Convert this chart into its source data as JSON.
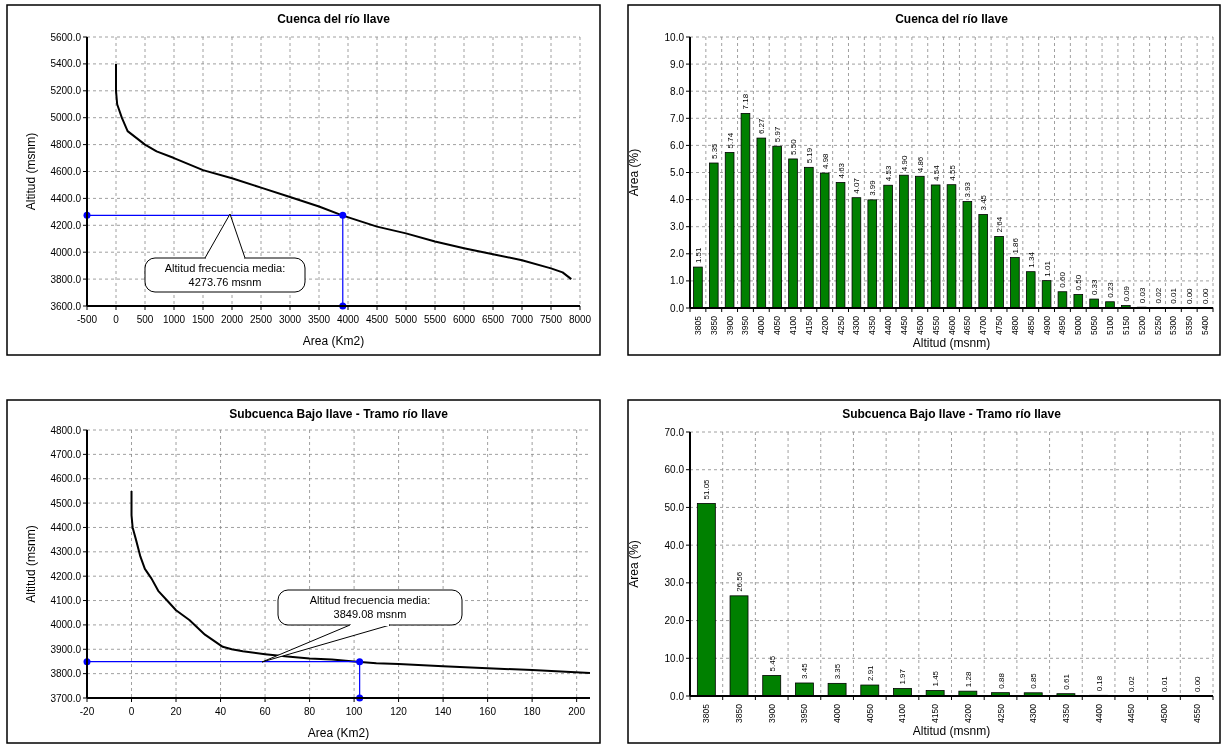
{
  "chart_data": [
    {
      "type": "line",
      "title": "Cuenca del río Ilave",
      "xlabel": "Area (Km2)",
      "ylabel": "Altitud (msnm)",
      "grid": true,
      "xlim": [
        -500,
        8000
      ],
      "xticks": [
        -500,
        0,
        500,
        1000,
        1500,
        2000,
        2500,
        3000,
        3500,
        4000,
        4500,
        5000,
        5500,
        6000,
        6500,
        7000,
        7500,
        8000
      ],
      "ylim": [
        3600,
        5600
      ],
      "yticks": [
        {
          "value": 3600,
          "label": "3600.0"
        },
        {
          "value": 3800,
          "label": "3800.0"
        },
        {
          "value": 4000,
          "label": "4000.0"
        },
        {
          "value": 4200,
          "label": "4200.0"
        },
        {
          "value": 4400,
          "label": "4400.0"
        },
        {
          "value": 4600,
          "label": "4600.0"
        },
        {
          "value": 4800,
          "label": "4800.0"
        },
        {
          "value": 5000,
          "label": "5000.0"
        },
        {
          "value": 5200,
          "label": "5200.0"
        },
        {
          "value": 5400,
          "label": "5400.0"
        },
        {
          "value": 5600,
          "label": "5600.0"
        }
      ],
      "series": [
        {
          "color": "#000000",
          "marker": "none",
          "x": [
            0,
            0,
            20,
            100,
            200,
            350,
            500,
            700,
            1000,
            1500,
            2000,
            2500,
            3000,
            3500,
            3900,
            4500,
            5000,
            5500,
            6000,
            6500,
            7000,
            7500,
            7700,
            7850
          ],
          "values": [
            5400,
            5200,
            5100,
            5000,
            4900,
            4850,
            4800,
            4750,
            4700,
            4610,
            4550,
            4480,
            4410,
            4340,
            4274,
            4190,
            4140,
            4080,
            4030,
            3985,
            3940,
            3880,
            3850,
            3800
          ]
        },
        {
          "color": "#0000ff",
          "marker": "circle",
          "x": [
            -500,
            3910,
            3910
          ],
          "values": [
            4274,
            4274,
            3600
          ]
        }
      ],
      "annotations": [
        "Altitud frecuencia media:\n4273.76 msnm"
      ]
    },
    {
      "type": "bar",
      "title": "Cuenca del río Ilave",
      "xlabel": "Altitud (msnm)",
      "ylabel": "Area (%)",
      "grid": true,
      "categories": [
        "3805",
        "3850",
        "3900",
        "3950",
        "4000",
        "4050",
        "4100",
        "4150",
        "4200",
        "4250",
        "4300",
        "4350",
        "4400",
        "4450",
        "4500",
        "4550",
        "4600",
        "4650",
        "4700",
        "4750",
        "4800",
        "4850",
        "4900",
        "4950",
        "5000",
        "5050",
        "5100",
        "5150",
        "5200",
        "5250",
        "5300",
        "5350",
        "5400"
      ],
      "values": [
        1.51,
        5.35,
        5.74,
        7.18,
        6.27,
        5.97,
        5.5,
        5.19,
        4.98,
        4.63,
        4.07,
        3.99,
        4.53,
        4.9,
        4.86,
        4.54,
        4.55,
        3.93,
        3.45,
        2.64,
        1.86,
        1.34,
        1.01,
        0.6,
        0.5,
        0.33,
        0.23,
        0.09,
        0.03,
        0.02,
        0.01,
        0,
        0
      ],
      "value_labels": [
        "1.51",
        "5.35",
        "5.74",
        "7.18",
        "6.27",
        "5.97",
        "5.50",
        "5.19",
        "4.98",
        "4.63",
        "4.07",
        "3.99",
        "4.53",
        "4.90",
        "4.86",
        "4.54",
        "4.55",
        "3.93",
        "3.45",
        "2.64",
        "1.86",
        "1.34",
        "1.01",
        "0.60",
        "0.50",
        "0.33",
        "0.23",
        "0.09",
        "0.03",
        "0.02",
        "0.01",
        "0.00",
        "0.00"
      ],
      "color": "#008000",
      "ylim": [
        0,
        10
      ],
      "yticks": [
        {
          "value": 0,
          "label": "0.0"
        },
        {
          "value": 1,
          "label": "1.0"
        },
        {
          "value": 2,
          "label": "2.0"
        },
        {
          "value": 3,
          "label": "3.0"
        },
        {
          "value": 4,
          "label": "4.0"
        },
        {
          "value": 5,
          "label": "5.0"
        },
        {
          "value": 6,
          "label": "6.0"
        },
        {
          "value": 7,
          "label": "7.0"
        },
        {
          "value": 8,
          "label": "8.0"
        },
        {
          "value": 9,
          "label": "9.0"
        },
        {
          "value": 10,
          "label": "10.0"
        }
      ]
    },
    {
      "type": "line",
      "title": "Subcuenca Bajo Ilave - Tramo río Ilave",
      "xlabel": "Area (Km2)",
      "ylabel": "Altitud (msnm)",
      "grid": true,
      "xlim": [
        -20,
        206
      ],
      "xticks": [
        -20,
        0,
        20,
        40,
        60,
        80,
        100,
        120,
        140,
        160,
        180,
        200
      ],
      "ylim": [
        3700,
        4800
      ],
      "yticks": [
        {
          "value": 3700,
          "label": "3700.0"
        },
        {
          "value": 3800,
          "label": "3800.0"
        },
        {
          "value": 3900,
          "label": "3900.0"
        },
        {
          "value": 4000,
          "label": "4000.0"
        },
        {
          "value": 4100,
          "label": "4100.0"
        },
        {
          "value": 4200,
          "label": "4200.0"
        },
        {
          "value": 4300,
          "label": "4300.0"
        },
        {
          "value": 4400,
          "label": "4400.0"
        },
        {
          "value": 4500,
          "label": "4500.0"
        },
        {
          "value": 4600,
          "label": "4600.0"
        },
        {
          "value": 4700,
          "label": "4700.0"
        },
        {
          "value": 4800,
          "label": "4800.0"
        }
      ],
      "series": [
        {
          "color": "#000000",
          "marker": "none",
          "x": [
            0,
            0,
            0.5,
            2,
            4,
            6,
            9,
            12,
            16,
            20,
            26,
            33,
            41,
            45,
            50,
            60,
            70,
            80,
            90,
            100,
            110,
            120,
            140,
            160,
            180,
            206
          ],
          "values": [
            4550,
            4450,
            4400,
            4350,
            4280,
            4230,
            4190,
            4140,
            4100,
            4060,
            4020,
            3960,
            3910,
            3900,
            3892,
            3880,
            3870,
            3862,
            3858,
            3850,
            3843,
            3840,
            3830,
            3822,
            3815,
            3803
          ]
        },
        {
          "color": "#0000ff",
          "marker": "circle",
          "x": [
            -20,
            102.5,
            102.5
          ],
          "values": [
            3849,
            3849,
            3700
          ]
        }
      ],
      "annotations": [
        "Altitud frecuencia media:\n3849.08 msnm"
      ]
    },
    {
      "type": "bar",
      "title": "Subcuenca Bajo Ilave - Tramo río Ilave",
      "xlabel": "Altitud (msnm)",
      "ylabel": "Area (%)",
      "grid": true,
      "categories": [
        "3805",
        "3850",
        "3900",
        "3950",
        "4000",
        "4050",
        "4100",
        "4150",
        "4200",
        "4250",
        "4300",
        "4350",
        "4400",
        "4450",
        "4500",
        "4550"
      ],
      "values": [
        51.05,
        26.56,
        5.45,
        3.45,
        3.35,
        2.91,
        1.97,
        1.45,
        1.28,
        0.88,
        0.85,
        0.61,
        0.18,
        0.02,
        0.01,
        0
      ],
      "value_labels": [
        "51.05",
        "26.56",
        "5.45",
        "3.45",
        "3.35",
        "2.91",
        "1.97",
        "1.45",
        "1.28",
        "0.88",
        "0.85",
        "0.61",
        "0.18",
        "0.02",
        "0.01",
        "0.00"
      ],
      "color": "#008000",
      "ylim": [
        0,
        70
      ],
      "yticks": [
        {
          "value": 0,
          "label": "0.0"
        },
        {
          "value": 10,
          "label": "10.0"
        },
        {
          "value": 20,
          "label": "20.0"
        },
        {
          "value": 30,
          "label": "30.0"
        },
        {
          "value": 40,
          "label": "40.0"
        },
        {
          "value": 50,
          "label": "50.0"
        },
        {
          "value": 60,
          "label": "60.0"
        },
        {
          "value": 70,
          "label": "70.0"
        }
      ]
    }
  ]
}
